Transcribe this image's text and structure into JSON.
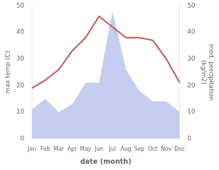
{
  "chart_data": {
    "type": "line",
    "x_label": "date (month)",
    "y_label": "max temp (C)",
    "y2_label": "med. precipitation\n(kg/m2)",
    "categories": [
      "Jan",
      "Feb",
      "Mar",
      "Apr",
      "May",
      "Jun",
      "Jul",
      "Aug",
      "Sep",
      "Oct",
      "Nov",
      "Dec"
    ],
    "series": [
      {
        "type": "area",
        "axis": "y2",
        "color": "#c5cef0",
        "values": [
          11,
          15,
          10,
          13,
          21,
          21,
          48,
          26,
          18,
          14,
          14,
          10
        ]
      },
      {
        "type": "line",
        "color": "#c0504d",
        "values": [
          19,
          22,
          26,
          33,
          38,
          46,
          42,
          38,
          38,
          37,
          30,
          21
        ]
      }
    ],
    "ylim": [
      0,
      50
    ],
    "yticks": [
      0,
      10,
      20,
      30,
      40,
      50
    ],
    "y2lim": [
      0,
      50
    ],
    "y2ticks": [
      0,
      10,
      20,
      30,
      40,
      50
    ],
    "grid": false
  }
}
